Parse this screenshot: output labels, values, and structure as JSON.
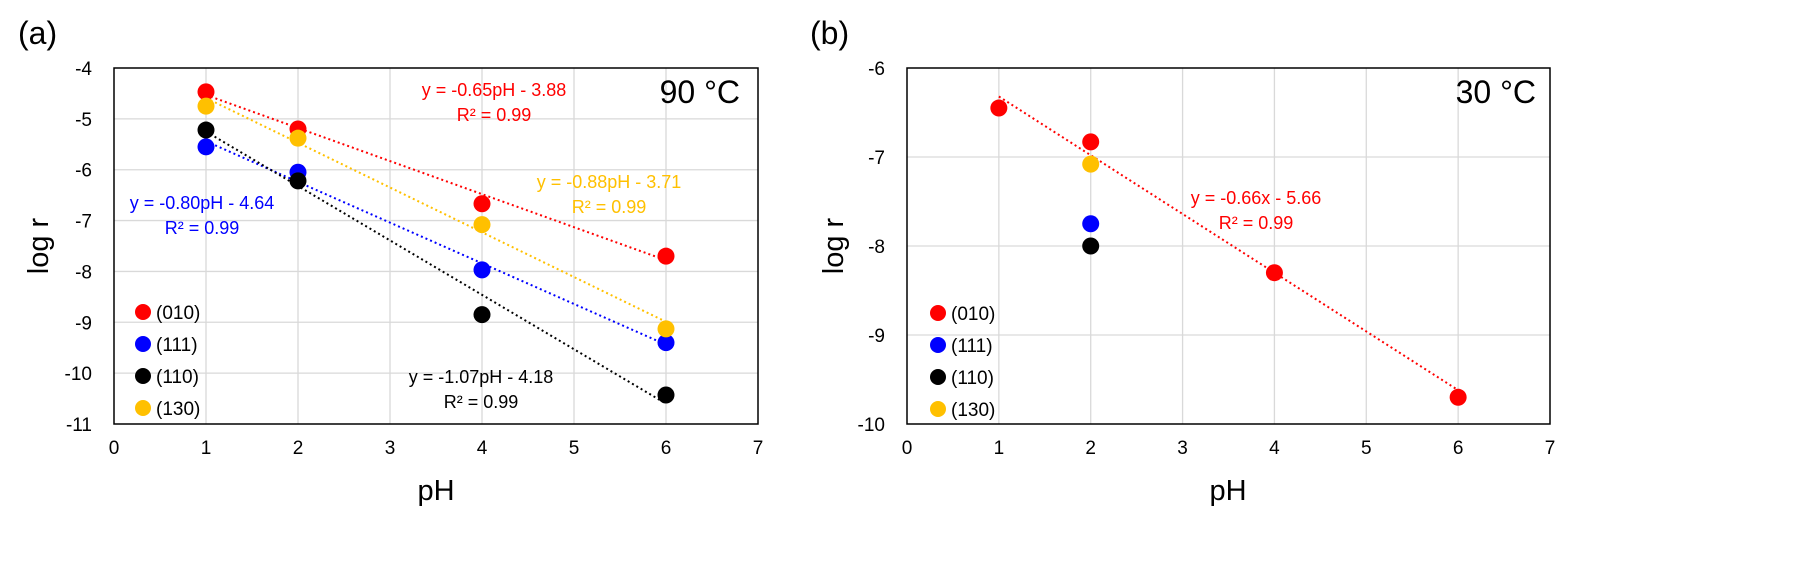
{
  "chart_data": [
    {
      "panel_label": "(a)",
      "type": "scatter",
      "annotation_temp": "90 °C",
      "xlabel": "pH",
      "ylabel": "log r",
      "xlim": [
        0,
        7
      ],
      "ylim": [
        -11,
        -4
      ],
      "xticks": [
        0,
        1,
        2,
        3,
        4,
        5,
        6,
        7
      ],
      "yticks": [
        -4,
        -5,
        -6,
        -7,
        -8,
        -9,
        -10,
        -11
      ],
      "grid": true,
      "legend_position": "bottom-left",
      "series": [
        {
          "name": "(010)",
          "color": "#ff0000",
          "x": [
            1,
            2,
            4,
            6
          ],
          "y": [
            -4.47,
            -5.2,
            -6.67,
            -7.7
          ]
        },
        {
          "name": "(111)",
          "color": "#0000ff",
          "x": [
            1,
            2,
            4,
            6
          ],
          "y": [
            -5.55,
            -6.05,
            -7.97,
            -9.4
          ]
        },
        {
          "name": "(110)",
          "color": "#000000",
          "x": [
            1,
            2,
            4,
            6
          ],
          "y": [
            -5.22,
            -6.22,
            -8.85,
            -10.43
          ]
        },
        {
          "name": "(130)",
          "color": "#ffc000",
          "x": [
            1,
            2,
            4,
            6
          ],
          "y": [
            -4.75,
            -5.38,
            -7.08,
            -9.13
          ]
        }
      ],
      "trendlines": [
        {
          "series": "(010)",
          "color": "#ff0000",
          "slope": -0.65,
          "intercept": -3.88,
          "x_range": [
            1,
            6
          ],
          "equation": "y = -0.65pH - 3.88",
          "r2": "R² = 0.99"
        },
        {
          "series": "(111)",
          "color": "#0000ff",
          "slope": -0.8,
          "intercept": -4.64,
          "x_range": [
            1,
            6
          ],
          "equation": "y = -0.80pH - 4.64",
          "r2": "R² = 0.99"
        },
        {
          "series": "(110)",
          "color": "#000000",
          "slope": -1.07,
          "intercept": -4.18,
          "x_range": [
            1,
            6
          ],
          "equation": "y = -1.07pH - 4.18",
          "r2": "R² = 0.99"
        },
        {
          "series": "(130)",
          "color": "#ffc000",
          "slope": -0.88,
          "intercept": -3.71,
          "x_range": [
            1,
            6
          ],
          "equation": "y = -0.88pH - 3.71",
          "r2": "R² = 0.99"
        }
      ]
    },
    {
      "panel_label": "(b)",
      "type": "scatter",
      "annotation_temp": "30 °C",
      "xlabel": "pH",
      "ylabel": "log r",
      "xlim": [
        0,
        7
      ],
      "ylim": [
        -10,
        -6
      ],
      "xticks": [
        0,
        1,
        2,
        3,
        4,
        5,
        6,
        7
      ],
      "yticks": [
        -6,
        -7,
        -8,
        -9,
        -10
      ],
      "grid": true,
      "legend_position": "bottom-left",
      "series": [
        {
          "name": "(010)",
          "color": "#ff0000",
          "x": [
            1,
            2,
            4,
            6
          ],
          "y": [
            -6.45,
            -6.83,
            -8.3,
            -9.7
          ]
        },
        {
          "name": "(111)",
          "color": "#0000ff",
          "x": [
            2
          ],
          "y": [
            -7.75
          ]
        },
        {
          "name": "(110)",
          "color": "#000000",
          "x": [
            2
          ],
          "y": [
            -8.0
          ]
        },
        {
          "name": "(130)",
          "color": "#ffc000",
          "x": [
            2
          ],
          "y": [
            -7.08
          ]
        }
      ],
      "trendlines": [
        {
          "series": "(010)",
          "color": "#ff0000",
          "slope": -0.66,
          "intercept": -5.66,
          "x_range": [
            1,
            6
          ],
          "equation": "y = -0.66x - 5.66",
          "r2": "R² = 0.99"
        }
      ]
    }
  ]
}
